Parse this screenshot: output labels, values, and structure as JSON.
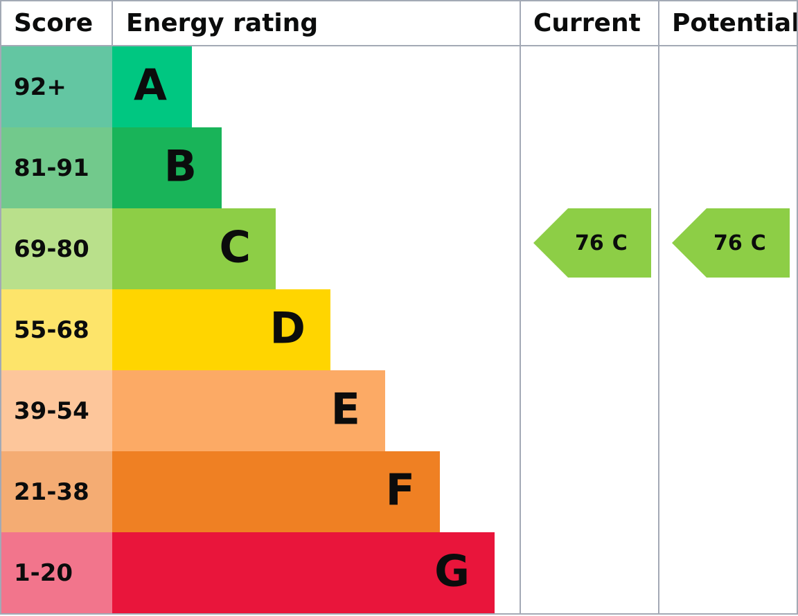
{
  "header": {
    "score": "Score",
    "rating": "Energy rating",
    "current": "Current",
    "potential": "Potential"
  },
  "bands": [
    {
      "score": "92+",
      "letter": "A",
      "score_color": "#63c6a2",
      "color": "#00c781"
    },
    {
      "score": "81-91",
      "letter": "B",
      "score_color": "#72c98c",
      "color": "#19b459"
    },
    {
      "score": "69-80",
      "letter": "C",
      "score_color": "#b9e08b",
      "color": "#8dce46"
    },
    {
      "score": "55-68",
      "letter": "D",
      "score_color": "#fde46a",
      "color": "#ffd500"
    },
    {
      "score": "39-54",
      "letter": "E",
      "score_color": "#fdc69b",
      "color": "#fcaa65"
    },
    {
      "score": "21-38",
      "letter": "F",
      "score_color": "#f4ac73",
      "color": "#ef8023"
    },
    {
      "score": "1-20",
      "letter": "G",
      "score_color": "#f2758c",
      "color": "#e9153b"
    }
  ],
  "current": {
    "score": 76,
    "band": "C"
  },
  "potential": {
    "score": 76,
    "band": "C"
  }
}
